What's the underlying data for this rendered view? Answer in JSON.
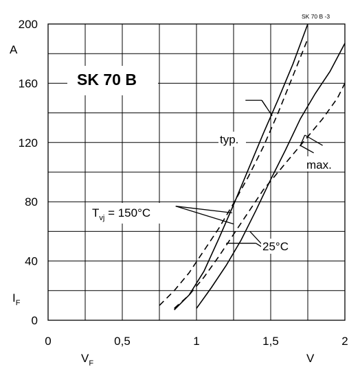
{
  "chart_data": {
    "type": "line",
    "title": "SK 70 B",
    "reference": "SK 70 B -3",
    "xlabel": "V",
    "xlabel_main": "V",
    "xlabel_sub": "F",
    "xunit": "V",
    "ylabel_main": "I",
    "ylabel_sub": "F",
    "yunit": "A",
    "xlim": [
      0,
      2
    ],
    "ylim": [
      0,
      200
    ],
    "xticks": [
      0,
      0.5,
      1,
      1.5,
      2
    ],
    "xtick_labels": [
      "0",
      "0,5",
      "1",
      "1,5",
      "2"
    ],
    "yticks": [
      0,
      40,
      80,
      120,
      160,
      200
    ],
    "ytick_labels": [
      "0",
      "40",
      "80",
      "120",
      "160",
      "200"
    ],
    "grid": true,
    "series": [
      {
        "style": "solid",
        "x": [
          0.85,
          0.95,
          1.05,
          1.15,
          1.25,
          1.35,
          1.45,
          1.55,
          1.65,
          1.75
        ],
        "y": [
          7,
          17,
          33,
          55,
          78,
          102,
          126,
          149,
          173,
          200
        ]
      },
      {
        "style": "solid",
        "x": [
          1.0,
          1.1,
          1.2,
          1.3,
          1.4,
          1.5,
          1.6,
          1.7,
          1.8,
          1.9,
          2.0
        ],
        "y": [
          8,
          22,
          37,
          54,
          74,
          95,
          115,
          136,
          153,
          168,
          187
        ]
      },
      {
        "style": "dashed",
        "x": [
          0.75,
          0.85,
          0.95,
          1.05,
          1.15,
          1.25,
          1.35,
          1.45,
          1.55,
          1.65,
          1.75
        ],
        "y": [
          10,
          20,
          32,
          47,
          62,
          79,
          97,
          117,
          140,
          165,
          190
        ]
      },
      {
        "style": "dashed",
        "x": [
          0.85,
          0.95,
          1.05,
          1.15,
          1.25,
          1.35,
          1.45,
          1.55,
          1.65,
          1.75,
          1.85,
          1.95,
          2.0
        ],
        "y": [
          8,
          17,
          29,
          43,
          58,
          73,
          88,
          100,
          112,
          124,
          136,
          150,
          160
        ]
      }
    ],
    "annotations": {
      "typ": "typ.",
      "max": "max.",
      "tvj_main": "T",
      "tvj_sub": "vj",
      "tvj_rest": " = 150°C",
      "t25": "25°C"
    }
  }
}
